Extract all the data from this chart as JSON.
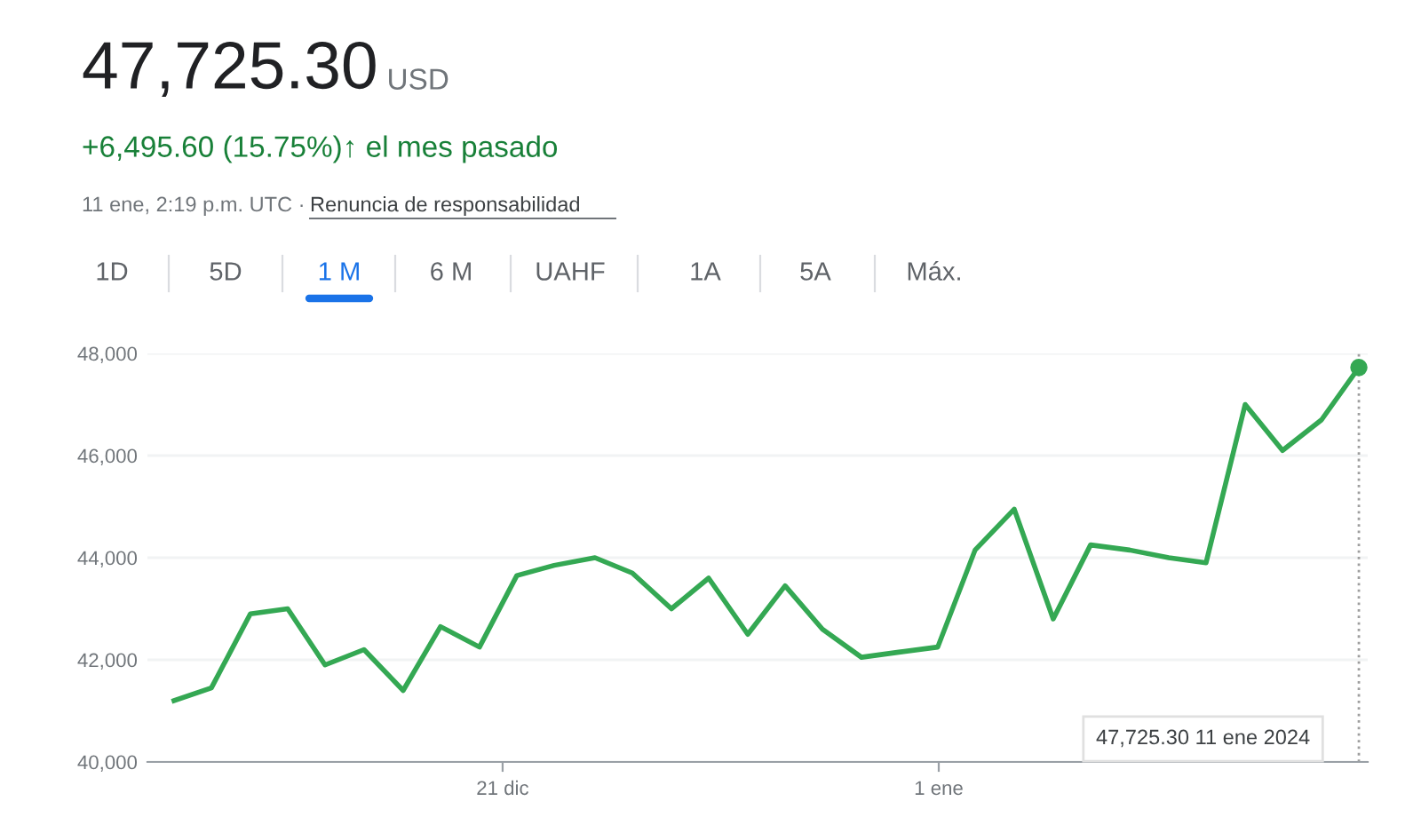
{
  "chart_data": {
    "type": "line",
    "title": "47,725.30",
    "annotations": [
      "USD",
      "+6,495.60 (15.75%)↑ el mes pasado",
      "11 ene, 2:19 p.m. UTC · ",
      "Renuncia de responsabilidad",
      "1D",
      "5D",
      "1 M",
      "6 M",
      "UAHF",
      "1A",
      "5A",
      "Máx.",
      "47,725.30 11 ene 2024"
    ],
    "series": [
      {
        "color": "#34a853",
        "x": [
          "2023-12-12T17:06",
          "2023-12-13T15:42",
          "2023-12-14T15:18",
          "2023-12-15T13:54",
          "2023-12-16T12:30",
          "2023-12-17T12:06",
          "2023-12-18T11:48",
          "2023-12-19T10:24",
          "2023-12-20T10:00",
          "2023-12-21T08:36",
          "2023-12-22T07:12",
          "2023-12-23T07:54",
          "2023-12-24T06:30",
          "2023-12-25T06:12",
          "2023-12-26T04:42",
          "2023-12-27T04:24",
          "2023-12-28T03:00",
          "2023-12-29T01:36",
          "2023-12-30T01:12",
          "2023-12-30T23:48",
          "2023-12-31T23:24",
          "2024-01-01T22:00",
          "2024-01-02T21:42",
          "2024-01-03T21:18",
          "2024-01-04T19:54",
          "2024-01-05T19:36",
          "2024-01-06T19:12",
          "2024-01-07T17:48",
          "2024-01-08T17:30",
          "2024-01-09T16:06",
          "2024-01-10T15:42",
          "2024-01-11T14:19"
        ],
        "values": [
          41200,
          41450,
          42900,
          43000,
          41900,
          42200,
          41400,
          42650,
          42250,
          43650,
          43850,
          44000,
          43700,
          43000,
          43600,
          42500,
          43450,
          42600,
          42050,
          42150,
          42250,
          44150,
          44950,
          42800,
          44250,
          44150,
          44000,
          43900,
          47000,
          46100,
          46700,
          47725.3
        ]
      }
    ],
    "xlim": [
      "2023-12-12T01:00",
      "2024-01-11T19:40"
    ],
    "xticks": [
      {
        "value": "2023-12-21",
        "label": "21 dic"
      },
      {
        "value": "2024-01-01",
        "label": "1 ene"
      }
    ],
    "ylim": [
      40000,
      48000
    ],
    "yticks": [
      {
        "value": 40000,
        "label": "40,000"
      },
      {
        "value": 42000,
        "label": "42,000"
      },
      {
        "value": 44000,
        "label": "44,000"
      },
      {
        "value": 46000,
        "label": "46,000"
      },
      {
        "value": 48000,
        "label": "48,000"
      }
    ],
    "ref_lines": [
      {
        "axis": "x",
        "value": "2024-01-11T14:19",
        "line_style": "dotted",
        "color": "#9e9e9e"
      }
    ],
    "grid": "y",
    "marker": "none",
    "line_style": "solid"
  }
}
